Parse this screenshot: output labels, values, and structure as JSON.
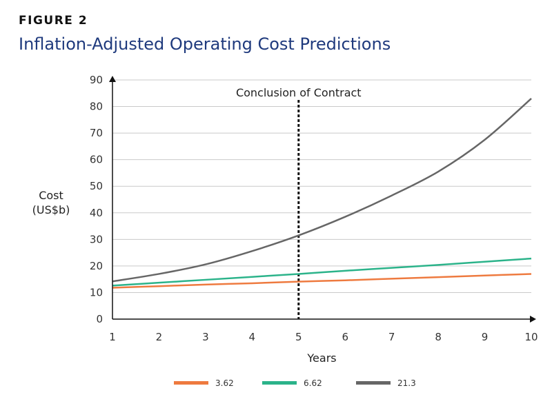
{
  "figure_label": "FIGURE 2",
  "chart_data": {
    "type": "line",
    "title": "Inflation-Adjusted Operating Cost Predictions",
    "xlabel": "Years",
    "ylabel_lines": [
      "Cost",
      "(US$b)"
    ],
    "x": [
      1,
      2,
      3,
      4,
      5,
      6,
      7,
      8,
      9,
      10
    ],
    "xlim": [
      1,
      10
    ],
    "ylim": [
      0,
      90
    ],
    "yticks": [
      0,
      10,
      20,
      30,
      40,
      50,
      60,
      70,
      80,
      90
    ],
    "grid": true,
    "legend_position": "bottom",
    "annotation": {
      "label": "Conclusion of Contract",
      "x": 5
    },
    "series": [
      {
        "name": "3.62",
        "color": "#ee7a3f",
        "values": [
          11.8,
          12.4,
          13.0,
          13.5,
          14.1,
          14.6,
          15.2,
          15.8,
          16.4,
          17.0
        ]
      },
      {
        "name": "6.62",
        "color": "#2bb38a",
        "values": [
          12.6,
          13.7,
          14.8,
          15.9,
          17.0,
          18.2,
          19.3,
          20.4,
          21.6,
          22.8
        ]
      },
      {
        "name": "21.3",
        "color": "#666666",
        "values": [
          14.2,
          17.0,
          20.6,
          25.6,
          31.5,
          38.5,
          46.5,
          55.5,
          67.5,
          83.0
        ]
      }
    ]
  }
}
